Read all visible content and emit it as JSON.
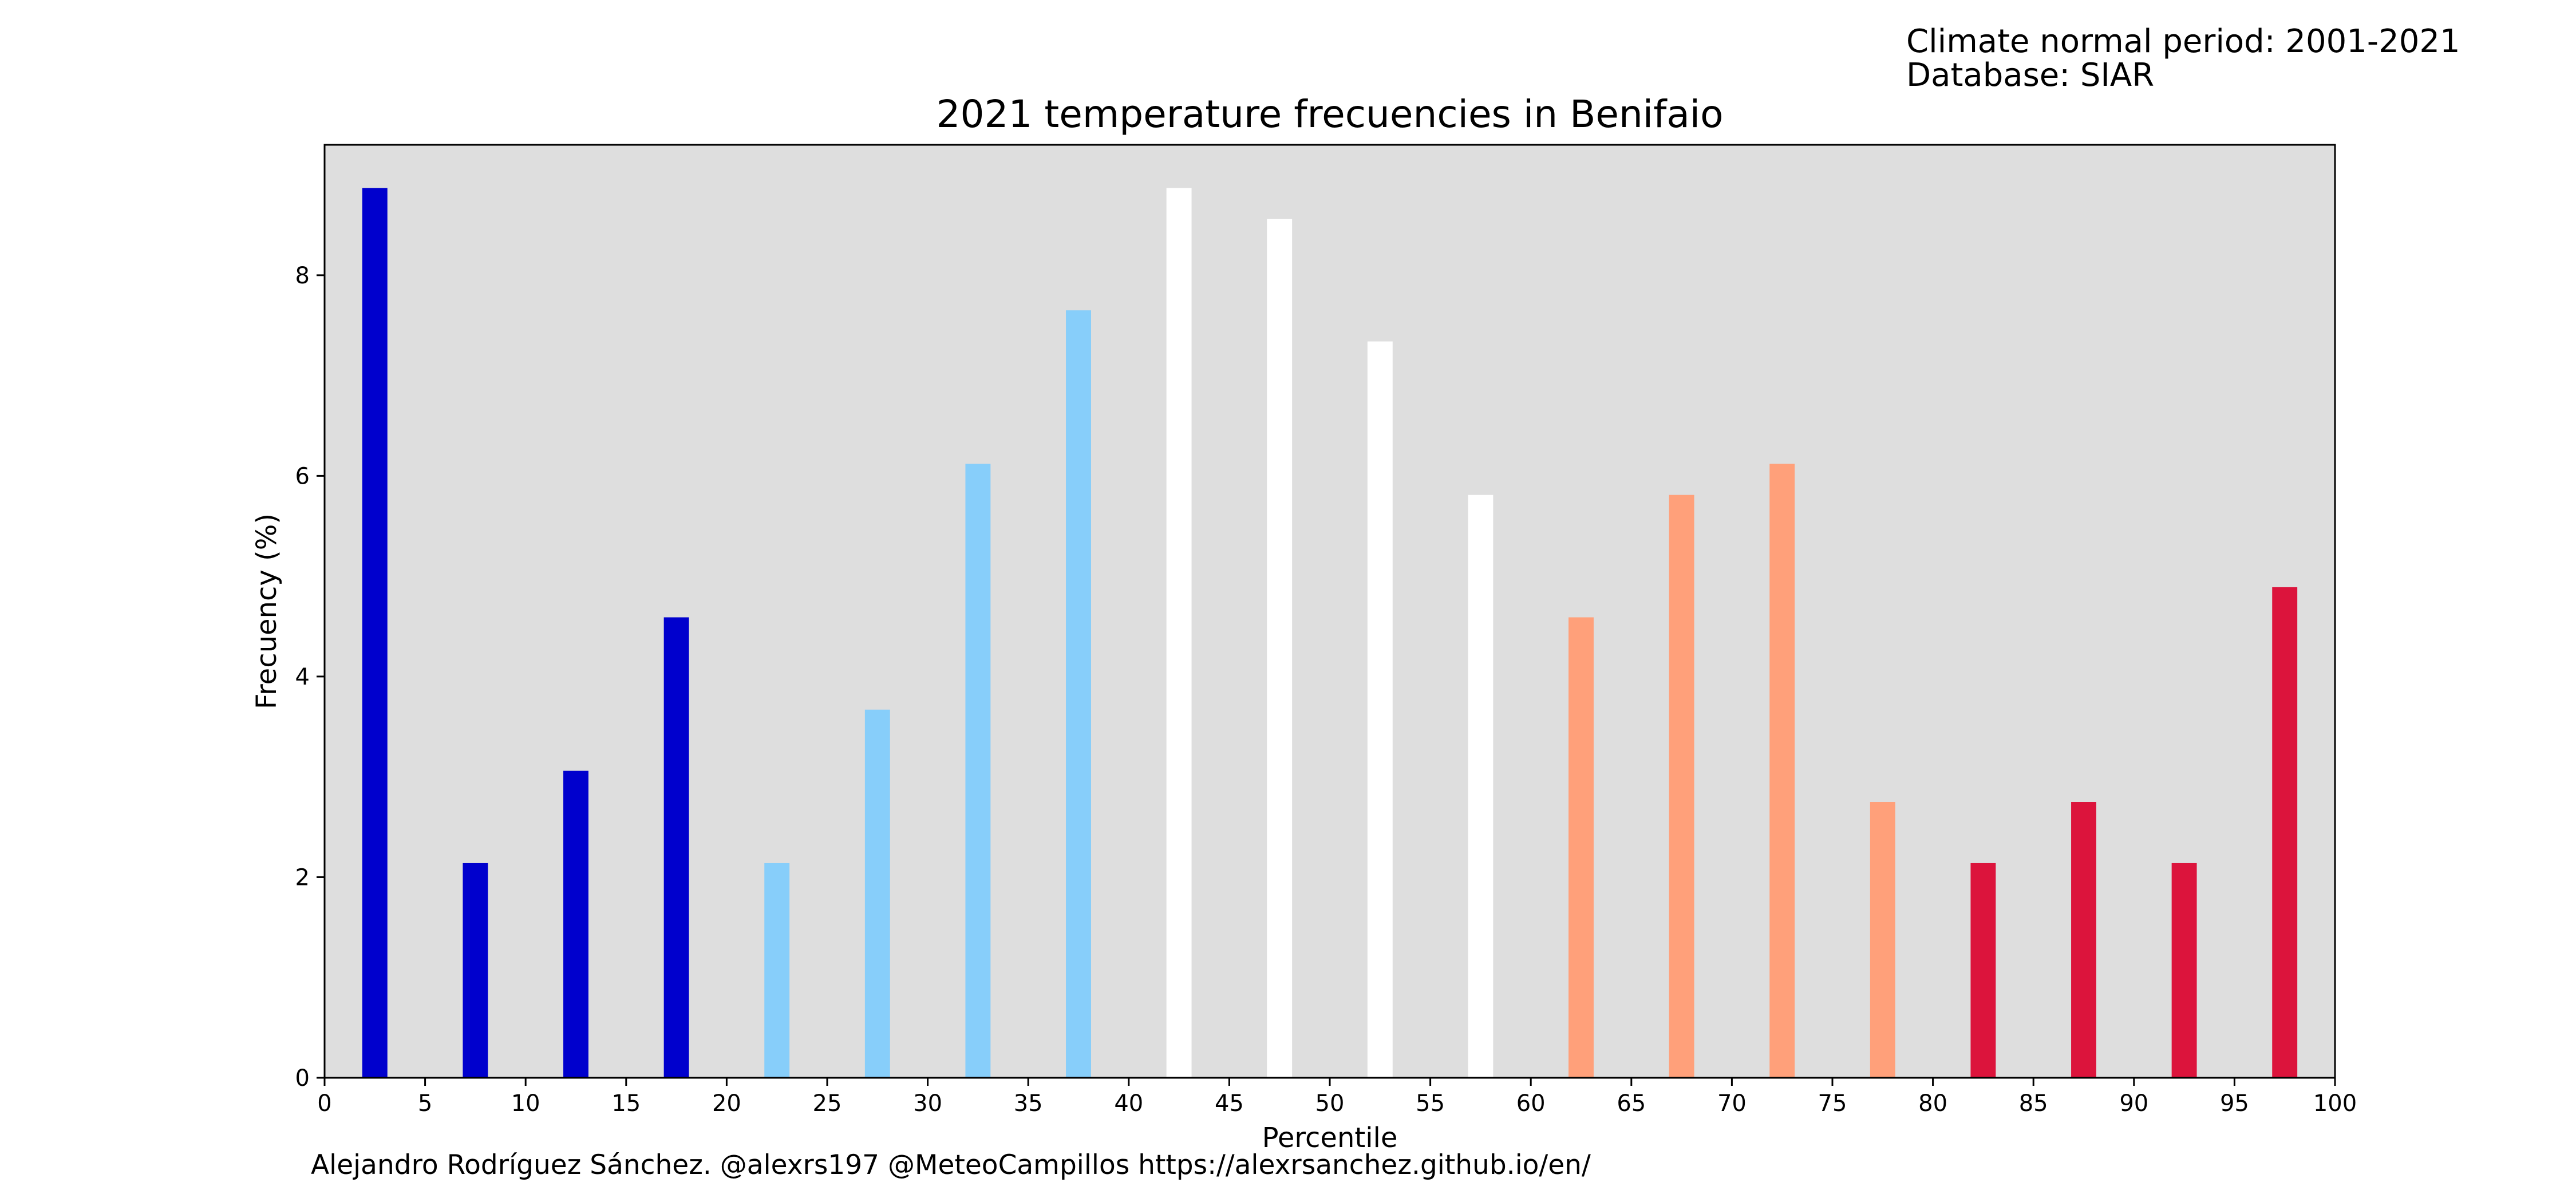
{
  "chart_data": {
    "type": "bar",
    "title": "2021 temperature frecuencies in Benifaio",
    "xlabel": "Percentile",
    "ylabel": "Frecuency (%)",
    "xlim": [
      0,
      100
    ],
    "ylim": [
      0,
      9.3
    ],
    "x_ticks": [
      0,
      5,
      10,
      15,
      20,
      25,
      30,
      35,
      40,
      45,
      50,
      55,
      60,
      65,
      70,
      75,
      80,
      85,
      90,
      95,
      100
    ],
    "y_ticks": [
      0,
      2,
      4,
      6,
      8
    ],
    "grid": false,
    "background_color": "#dedede",
    "bar_width": 1.25,
    "x": [
      2.5,
      7.5,
      12.5,
      17.5,
      22.5,
      27.5,
      32.5,
      37.5,
      42.5,
      47.5,
      52.5,
      57.5,
      62.5,
      67.5,
      72.5,
      77.5,
      82.5,
      87.5,
      92.5,
      97.5
    ],
    "values": [
      8.87,
      2.14,
      3.06,
      4.59,
      2.14,
      3.67,
      6.12,
      7.65,
      8.87,
      8.56,
      7.34,
      5.81,
      4.59,
      5.81,
      6.12,
      2.75,
      2.14,
      2.75,
      2.14,
      4.89
    ],
    "colors": [
      "#0000cd",
      "#0000cd",
      "#0000cd",
      "#0000cd",
      "#87cefa",
      "#87cefa",
      "#87cefa",
      "#87cefa",
      "#ffffff",
      "#ffffff",
      "#ffffff",
      "#ffffff",
      "#ffa07a",
      "#ffa07a",
      "#ffa07a",
      "#ffa07a",
      "#dc143c",
      "#dc143c",
      "#dc143c",
      "#dc143c"
    ]
  },
  "annotations": {
    "period": "Climate normal period: 2001-2021",
    "database": "Database: SIAR",
    "credit": "Alejandro Rodríguez Sánchez. @alexrs197 @MeteoCampillos   https://alexrsanchez.github.io/en/"
  }
}
